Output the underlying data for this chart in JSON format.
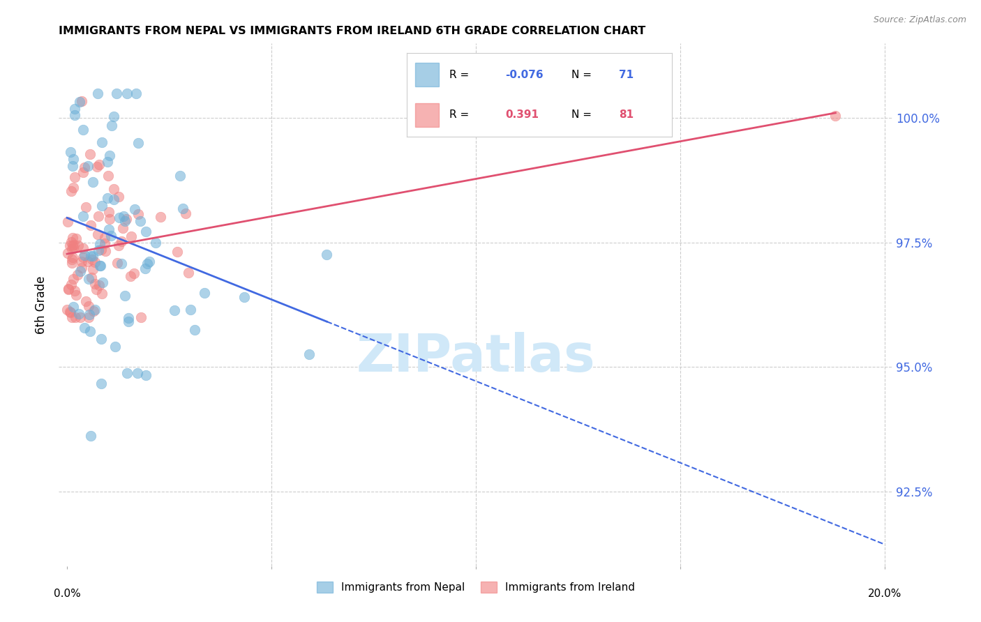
{
  "title": "IMMIGRANTS FROM NEPAL VS IMMIGRANTS FROM IRELAND 6TH GRADE CORRELATION CHART",
  "source": "Source: ZipAtlas.com",
  "ylabel": "6th Grade",
  "yticks": [
    92.5,
    95.0,
    97.5,
    100.0
  ],
  "ytick_labels": [
    "92.5%",
    "95.0%",
    "97.5%",
    "100.0%"
  ],
  "xlim": [
    0.0,
    0.2
  ],
  "ylim": [
    91.0,
    101.5
  ],
  "legend_nepal_R": "-0.076",
  "legend_nepal_N": "71",
  "legend_ireland_R": "0.391",
  "legend_ireland_N": "81",
  "nepal_color": "#6baed6",
  "ireland_color": "#f08080",
  "trend_nepal_color": "#4169e1",
  "trend_ireland_color": "#e05070",
  "background_color": "#ffffff",
  "watermark_text": "ZIPatlas",
  "watermark_color": "#d0e8f8"
}
